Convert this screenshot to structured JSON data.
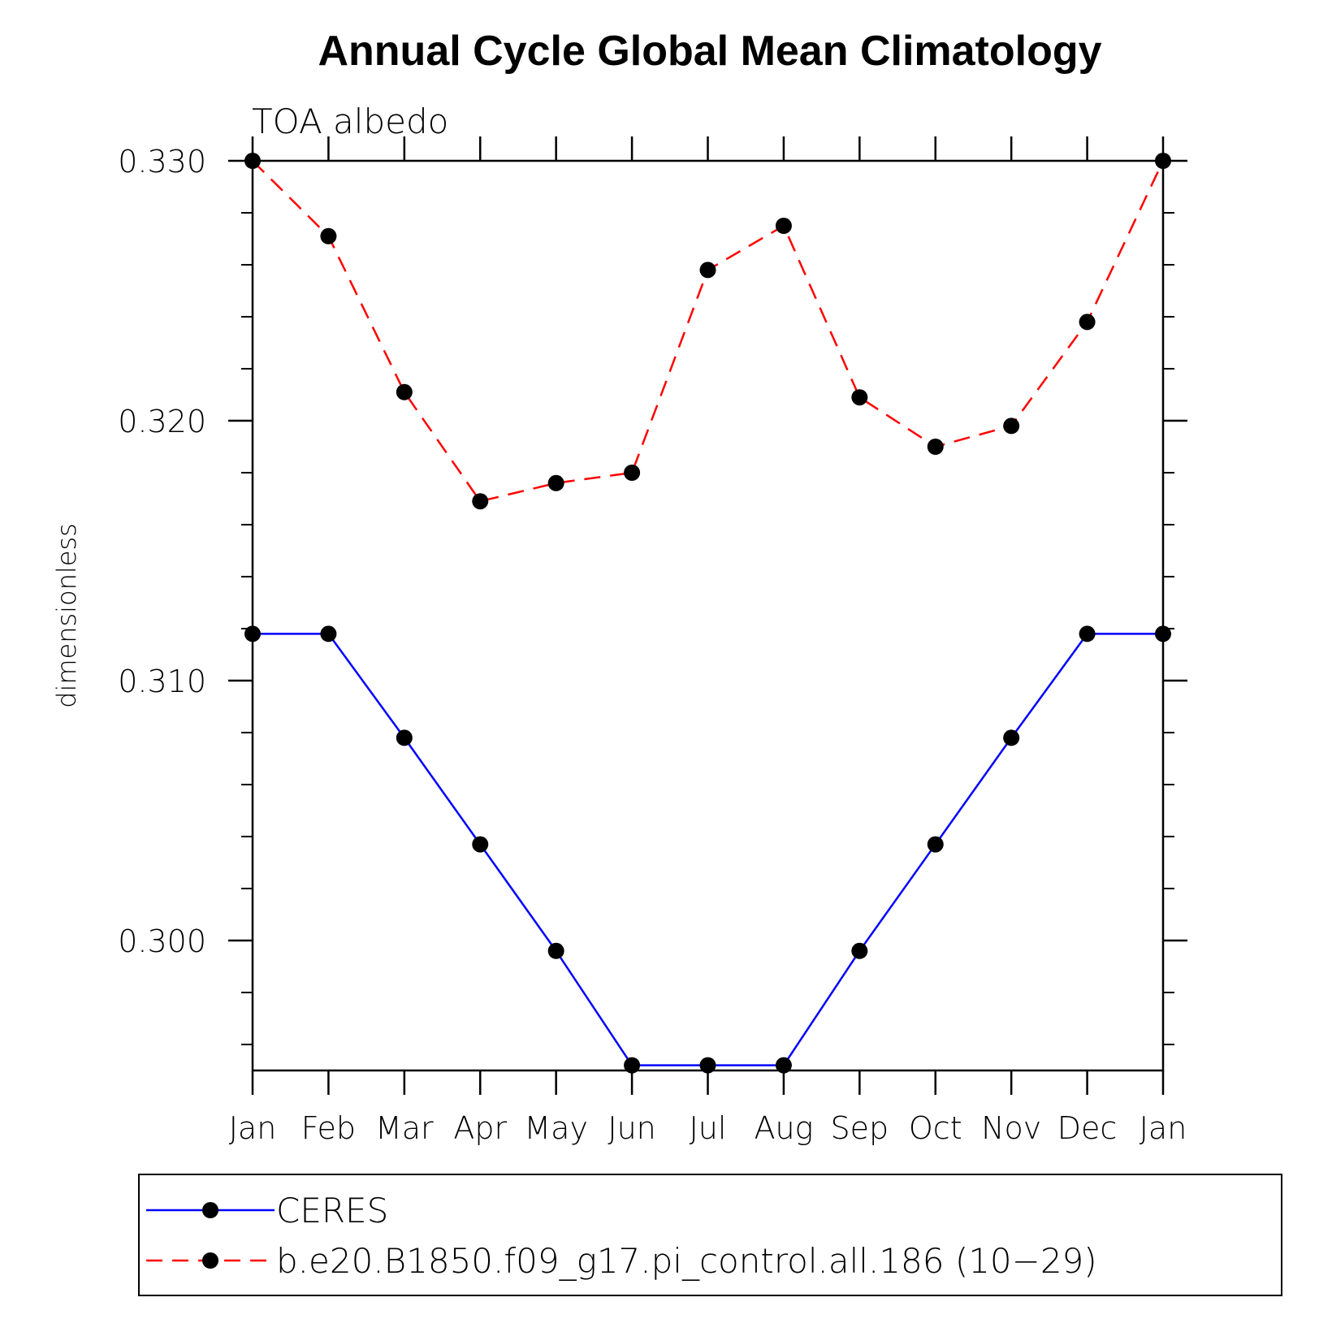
{
  "chart_data": {
    "type": "line",
    "title": "Annual Cycle Global Mean Climatology",
    "subtitle": "TOA albedo",
    "ylabel": "dimensionless",
    "xlabel": "",
    "categories": [
      "Jan",
      "Feb",
      "Mar",
      "Apr",
      "May",
      "Jun",
      "Jul",
      "Aug",
      "Sep",
      "Oct",
      "Nov",
      "Dec",
      "Jan"
    ],
    "ylim": [
      0.295,
      0.33
    ],
    "yticks": [
      0.3,
      0.31,
      0.32,
      0.33
    ],
    "ytick_labels": [
      "0.300",
      "0.310",
      "0.320",
      "0.330"
    ],
    "y_minor_step": 0.002,
    "grid": false,
    "legend_position": "bottom",
    "series": [
      {
        "name": "CERES",
        "color": "#0000ff",
        "style": "solid",
        "marker": "circle",
        "values": [
          0.3118,
          0.3118,
          0.3078,
          0.3037,
          0.2996,
          0.2952,
          0.2952,
          0.2952,
          0.2996,
          0.3037,
          0.3078,
          0.3118,
          0.3118
        ]
      },
      {
        "name": "b.e20.B1850.f09_g17.pi_control.all.186 (10−29)",
        "color": "#ff0000",
        "style": "dashed",
        "marker": "circle",
        "values": [
          0.33,
          0.3271,
          0.3211,
          0.3169,
          0.3176,
          0.318,
          0.3258,
          0.3275,
          0.3209,
          0.319,
          0.3198,
          0.3238,
          0.33
        ]
      }
    ]
  }
}
